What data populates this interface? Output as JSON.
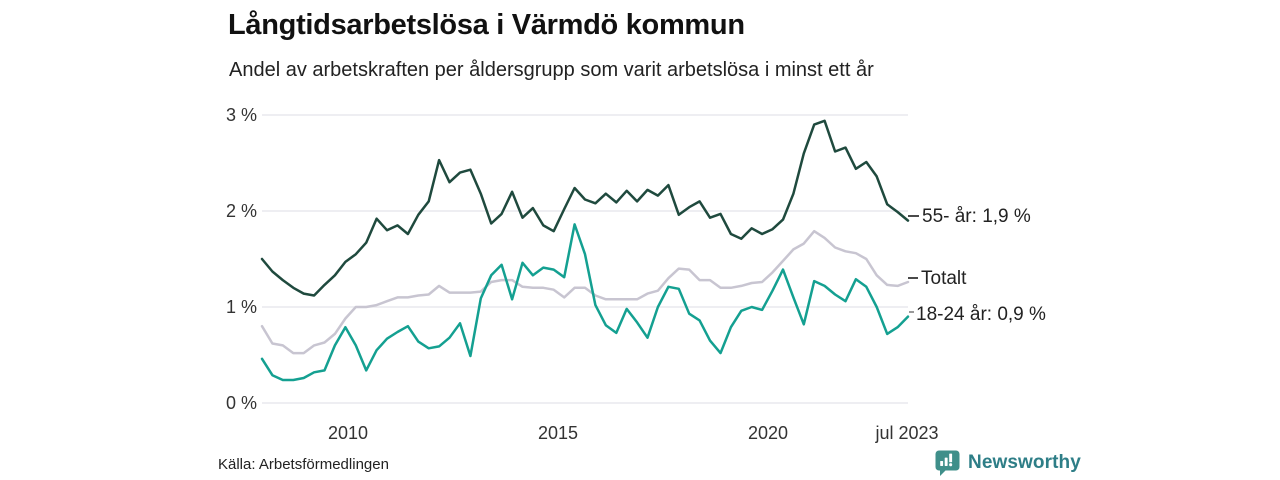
{
  "header": {
    "title": "Långtidsarbetslösa i Värmdö kommun",
    "subtitle": "Andel av arbetskraften per åldersgrupp som varit arbetslösa i minst ett år"
  },
  "footer": {
    "source": "Källa: Arbetsförmedlingen",
    "brand": "Newsworthy"
  },
  "chart_data": {
    "type": "line",
    "title": "Långtidsarbetslösa i Värmdö kommun",
    "subtitle": "Andel av arbetskraften per åldersgrupp som varit arbetslösa i minst ett år",
    "unit": "%",
    "x_start": 2008,
    "x_step": 0.25,
    "x_end_label": "jul 2023",
    "ylim": [
      0,
      3.1
    ],
    "grid": true,
    "colors": {
      "grid": "#e9e9ed"
    },
    "y_ticks": [
      {
        "value": 3,
        "label": "3 %"
      },
      {
        "value": 2,
        "label": "2 %"
      },
      {
        "value": 1,
        "label": "1 %"
      },
      {
        "value": 0,
        "label": "0 %"
      }
    ],
    "x_ticks": [
      {
        "value": 2010,
        "label": "2010"
      },
      {
        "value": 2015,
        "label": "2015"
      },
      {
        "value": 2020,
        "label": "2020"
      },
      {
        "value": 2023.5,
        "label": "jul 2023"
      }
    ],
    "series": [
      {
        "name": "55- år",
        "color": "#1f4a3e",
        "end_label": "55- år: 1,9 %",
        "end_value": 1.9,
        "values": [
          1.5,
          1.37,
          1.28,
          1.2,
          1.14,
          1.12,
          1.23,
          1.33,
          1.47,
          1.55,
          1.67,
          1.92,
          1.8,
          1.85,
          1.76,
          1.96,
          2.1,
          2.53,
          2.3,
          2.4,
          2.43,
          2.18,
          1.87,
          1.97,
          2.2,
          1.93,
          2.03,
          1.85,
          1.79,
          2.02,
          2.24,
          2.12,
          2.08,
          2.18,
          2.09,
          2.21,
          2.1,
          2.22,
          2.16,
          2.27,
          1.96,
          2.04,
          2.1,
          1.93,
          1.97,
          1.76,
          1.71,
          1.82,
          1.76,
          1.81,
          1.91,
          2.18,
          2.6,
          2.9,
          2.94,
          2.62,
          2.66,
          2.44,
          2.51,
          2.36,
          2.07,
          1.99,
          1.9
        ]
      },
      {
        "name": "Totalt",
        "color": "#c8c5d1",
        "end_label": "Totalt",
        "end_value": 1.26,
        "values": [
          0.8,
          0.62,
          0.6,
          0.52,
          0.52,
          0.6,
          0.63,
          0.72,
          0.88,
          1.0,
          1.0,
          1.02,
          1.06,
          1.1,
          1.1,
          1.12,
          1.13,
          1.22,
          1.15,
          1.15,
          1.15,
          1.16,
          1.26,
          1.28,
          1.28,
          1.21,
          1.2,
          1.2,
          1.18,
          1.1,
          1.2,
          1.2,
          1.12,
          1.08,
          1.08,
          1.08,
          1.08,
          1.14,
          1.17,
          1.3,
          1.4,
          1.39,
          1.28,
          1.28,
          1.2,
          1.2,
          1.22,
          1.25,
          1.26,
          1.36,
          1.48,
          1.6,
          1.66,
          1.79,
          1.72,
          1.62,
          1.58,
          1.56,
          1.5,
          1.33,
          1.23,
          1.22,
          1.26
        ]
      },
      {
        "name": "18-24 år",
        "color": "#14a091",
        "end_label": "18-24 år: 0,9 %",
        "end_value": 0.9,
        "values": [
          0.46,
          0.29,
          0.24,
          0.24,
          0.26,
          0.32,
          0.34,
          0.6,
          0.79,
          0.6,
          0.34,
          0.55,
          0.67,
          0.74,
          0.8,
          0.64,
          0.57,
          0.59,
          0.68,
          0.83,
          0.49,
          1.09,
          1.33,
          1.44,
          1.08,
          1.46,
          1.33,
          1.41,
          1.39,
          1.31,
          1.86,
          1.55,
          1.02,
          0.81,
          0.73,
          0.98,
          0.84,
          0.68,
          1.0,
          1.21,
          1.19,
          0.93,
          0.86,
          0.65,
          0.52,
          0.79,
          0.96,
          1.0,
          0.97,
          1.17,
          1.39,
          1.1,
          0.82,
          1.27,
          1.22,
          1.13,
          1.06,
          1.29,
          1.21,
          1.0,
          0.72,
          0.79,
          0.9
        ]
      }
    ]
  }
}
